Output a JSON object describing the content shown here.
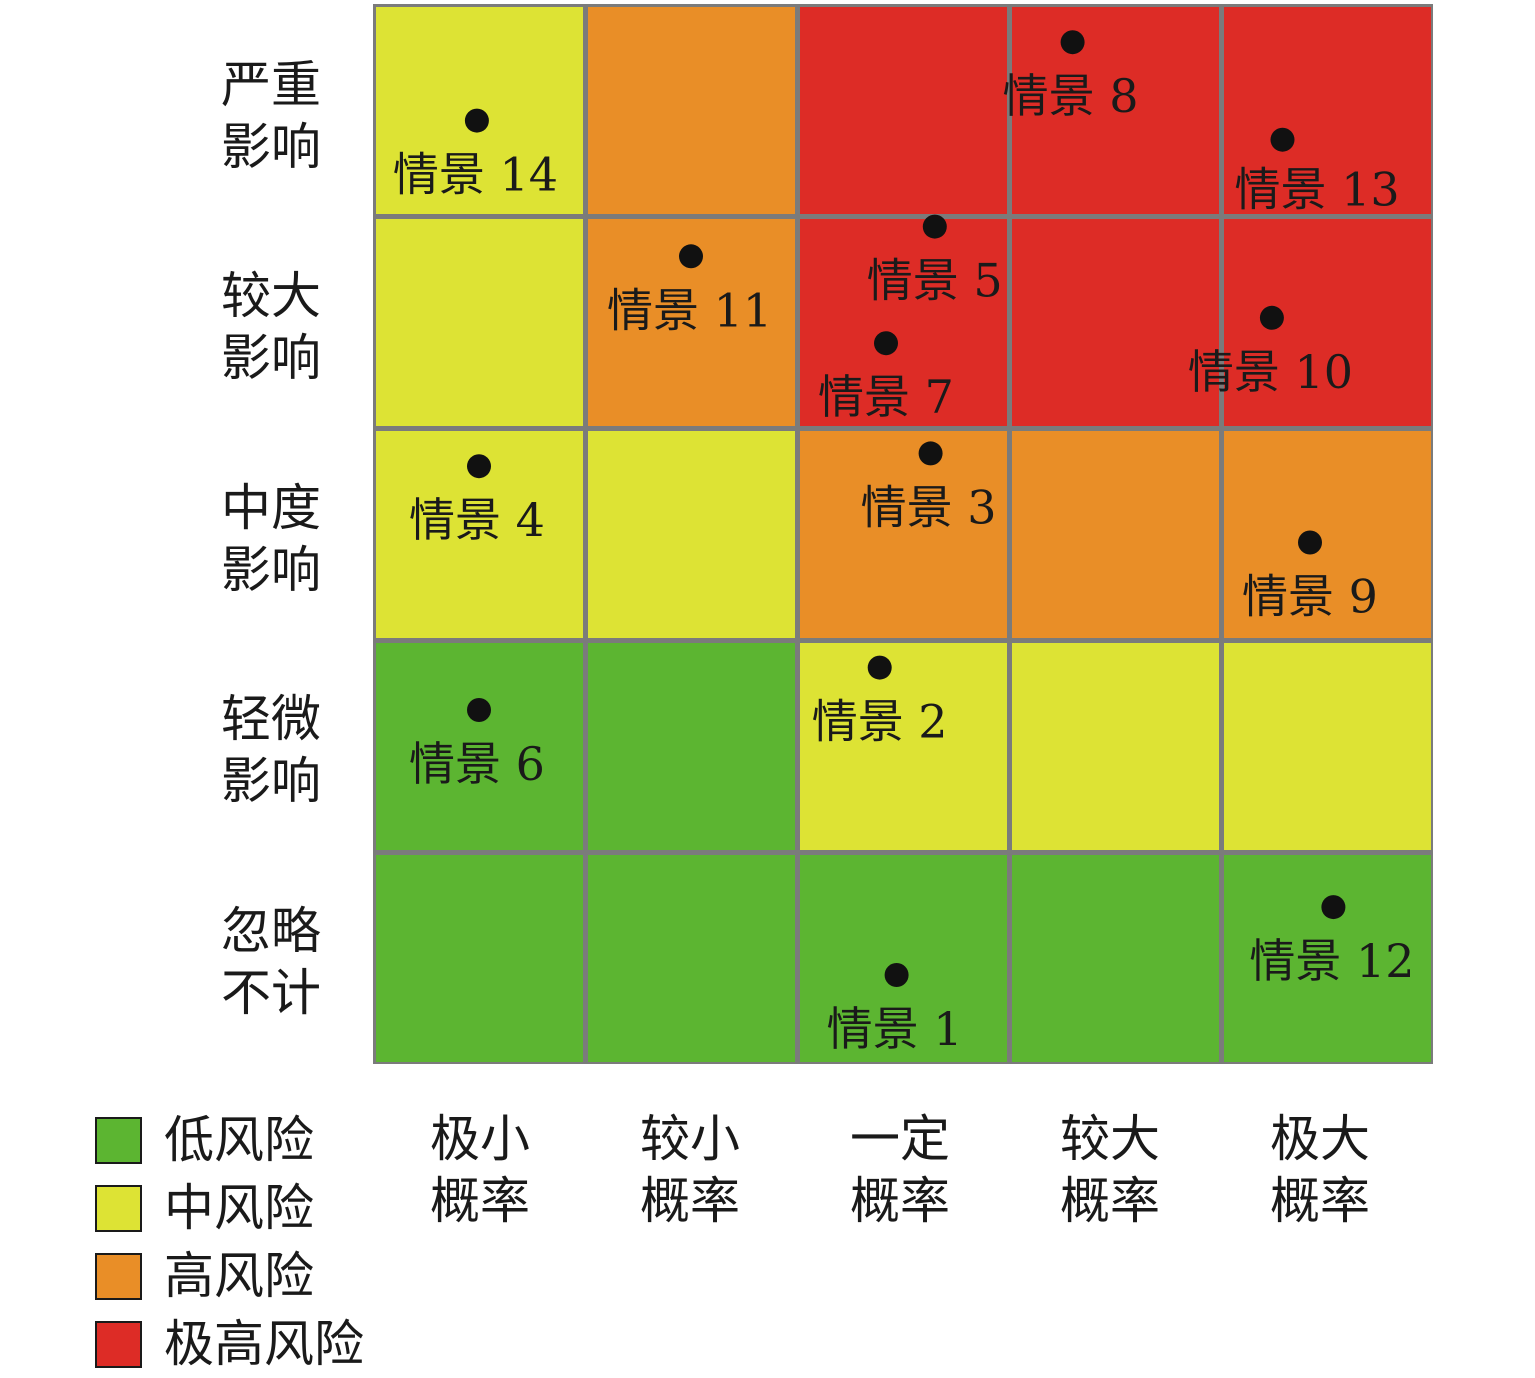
{
  "colors": {
    "low": "#5cb531",
    "medium": "#dde334",
    "high": "#e98e27",
    "extreme": "#dd2c26",
    "grid_line": "#7b7b7b",
    "point": "#111111"
  },
  "chart_data": {
    "type": "heatmap",
    "y_categories": [
      {
        "line1": "严重",
        "line2": "影响"
      },
      {
        "line1": "较大",
        "line2": "影响"
      },
      {
        "line1": "中度",
        "line2": "影响"
      },
      {
        "line1": "轻微",
        "line2": "影响"
      },
      {
        "line1": "忽略",
        "line2": "不计"
      }
    ],
    "x_categories": [
      {
        "line1": "极小",
        "line2": "概率"
      },
      {
        "line1": "较小",
        "line2": "概率"
      },
      {
        "line1": "一定",
        "line2": "概率"
      },
      {
        "line1": "较大",
        "line2": "概率"
      },
      {
        "line1": "极大",
        "line2": "概率"
      }
    ],
    "risk_grid": [
      [
        "medium",
        "high",
        "extreme",
        "extreme",
        "extreme"
      ],
      [
        "medium",
        "high",
        "extreme",
        "extreme",
        "extreme"
      ],
      [
        "medium",
        "medium",
        "high",
        "high",
        "high"
      ],
      [
        "low",
        "low",
        "medium",
        "medium",
        "medium"
      ],
      [
        "low",
        "low",
        "low",
        "low",
        "low"
      ]
    ],
    "legend": [
      {
        "key": "low",
        "label": "低风险"
      },
      {
        "key": "medium",
        "label": "中风险"
      },
      {
        "key": "high",
        "label": "高风险"
      },
      {
        "key": "extreme",
        "label": "极高风险"
      }
    ],
    "points": [
      {
        "label": "情景 1",
        "row": 4,
        "col": 2
      },
      {
        "label": "情景 2",
        "row": 3,
        "col": 2
      },
      {
        "label": "情景 3",
        "row": 2,
        "col": 2
      },
      {
        "label": "情景 4",
        "row": 2,
        "col": 0
      },
      {
        "label": "情景 5",
        "row": 1,
        "col": 2
      },
      {
        "label": "情景 6",
        "row": 3,
        "col": 0
      },
      {
        "label": "情景 7",
        "row": 1,
        "col": 2
      },
      {
        "label": "情景 8",
        "row": 0,
        "col": 3
      },
      {
        "label": "情景 9",
        "row": 2,
        "col": 4
      },
      {
        "label": "情景 10",
        "row": 1,
        "col": 4
      },
      {
        "label": "情景 11",
        "row": 1,
        "col": 1
      },
      {
        "label": "情景 12",
        "row": 4,
        "col": 4
      },
      {
        "label": "情景 13",
        "row": 0,
        "col": 4
      },
      {
        "label": "情景 14",
        "row": 0,
        "col": 0
      }
    ]
  }
}
